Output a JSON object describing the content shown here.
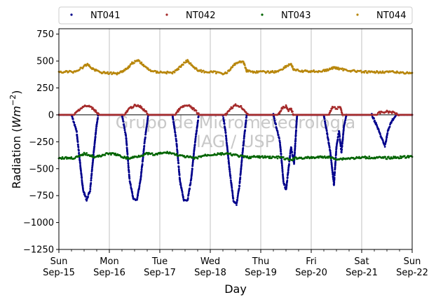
{
  "chart_data": {
    "type": "scatter",
    "xlabel": "Day",
    "ylabel_prefix": "Radiation (",
    "ylabel_unit_main": "Wm",
    "ylabel_unit_exp": "−2",
    "ylabel_suffix": ")",
    "ylim": [
      -1250,
      800
    ],
    "y_ticks": [
      -1250,
      -1000,
      -750,
      -500,
      -250,
      0,
      250,
      500,
      750
    ],
    "y_tick_labels": [
      "−1250",
      "−1000",
      "−750",
      "−500",
      "−250",
      "0",
      "250",
      "500",
      "750"
    ],
    "xlim": [
      0,
      7
    ],
    "x_ticks": [
      {
        "day": 0,
        "top": "Sun",
        "bottom": "Sep-15"
      },
      {
        "day": 1,
        "top": "Mon",
        "bottom": "Sep-16"
      },
      {
        "day": 2,
        "top": "Tue",
        "bottom": "Sep-17"
      },
      {
        "day": 3,
        "top": "Wed",
        "bottom": "Sep-18"
      },
      {
        "day": 4,
        "top": "Thu",
        "bottom": "Sep-19"
      },
      {
        "day": 5,
        "top": "Fri",
        "bottom": "Sep-20"
      },
      {
        "day": 6,
        "top": "Sat",
        "bottom": "Sep-21"
      },
      {
        "day": 7,
        "top": "Sun",
        "bottom": "Sep-22"
      }
    ],
    "grid": "vertical",
    "legend_position": "top",
    "watermark": [
      "Grupo de Micrometeorologia",
      "IAG / USP"
    ],
    "series": [
      {
        "name": "NT041",
        "color": "#00008b",
        "points": [
          [
            0,
            0
          ],
          [
            0.25,
            0
          ],
          [
            0.35,
            -150
          ],
          [
            0.42,
            -450
          ],
          [
            0.48,
            -700
          ],
          [
            0.55,
            -790
          ],
          [
            0.62,
            -700
          ],
          [
            0.68,
            -400
          ],
          [
            0.74,
            -120
          ],
          [
            0.78,
            0
          ],
          [
            1.25,
            0
          ],
          [
            1.33,
            -200
          ],
          [
            1.4,
            -600
          ],
          [
            1.48,
            -790
          ],
          [
            1.55,
            -780
          ],
          [
            1.62,
            -600
          ],
          [
            1.7,
            -250
          ],
          [
            1.77,
            0
          ],
          [
            2.25,
            0
          ],
          [
            2.33,
            -250
          ],
          [
            2.4,
            -620
          ],
          [
            2.48,
            -800
          ],
          [
            2.55,
            -790
          ],
          [
            2.62,
            -600
          ],
          [
            2.7,
            -250
          ],
          [
            2.77,
            0
          ],
          [
            3.25,
            0
          ],
          [
            3.3,
            -150
          ],
          [
            3.38,
            -500
          ],
          [
            3.46,
            -800
          ],
          [
            3.52,
            -830
          ],
          [
            3.58,
            -650
          ],
          [
            3.65,
            -300
          ],
          [
            3.72,
            0
          ],
          [
            4.25,
            0
          ],
          [
            4.38,
            -250
          ],
          [
            4.45,
            -620
          ],
          [
            4.5,
            -700
          ],
          [
            4.55,
            -500
          ],
          [
            4.6,
            -300
          ],
          [
            4.66,
            -450
          ],
          [
            4.72,
            0
          ],
          [
            5.25,
            0
          ],
          [
            5.38,
            -350
          ],
          [
            5.45,
            -650
          ],
          [
            5.5,
            -300
          ],
          [
            5.55,
            -150
          ],
          [
            5.6,
            -350
          ],
          [
            5.65,
            -100
          ],
          [
            5.7,
            0
          ],
          [
            6.2,
            0
          ],
          [
            6.3,
            -100
          ],
          [
            6.38,
            -200
          ],
          [
            6.46,
            -290
          ],
          [
            6.52,
            -150
          ],
          [
            6.6,
            -50
          ],
          [
            6.7,
            0
          ],
          [
            7,
            0
          ]
        ]
      },
      {
        "name": "NT042",
        "color": "#a52a2a",
        "points": [
          [
            0,
            0
          ],
          [
            0.3,
            0
          ],
          [
            0.4,
            50
          ],
          [
            0.5,
            80
          ],
          [
            0.6,
            80
          ],
          [
            0.7,
            50
          ],
          [
            0.8,
            0
          ],
          [
            1.3,
            0
          ],
          [
            1.4,
            60
          ],
          [
            1.5,
            85
          ],
          [
            1.6,
            80
          ],
          [
            1.7,
            40
          ],
          [
            1.78,
            0
          ],
          [
            2.3,
            0
          ],
          [
            2.4,
            60
          ],
          [
            2.5,
            85
          ],
          [
            2.6,
            80
          ],
          [
            2.7,
            40
          ],
          [
            2.78,
            0
          ],
          [
            3.3,
            0
          ],
          [
            3.4,
            60
          ],
          [
            3.5,
            90
          ],
          [
            3.6,
            80
          ],
          [
            3.7,
            30
          ],
          [
            3.75,
            0
          ],
          [
            4.35,
            0
          ],
          [
            4.42,
            60
          ],
          [
            4.5,
            80
          ],
          [
            4.55,
            40
          ],
          [
            4.6,
            60
          ],
          [
            4.65,
            0
          ],
          [
            5.35,
            0
          ],
          [
            5.42,
            70
          ],
          [
            5.5,
            60
          ],
          [
            5.58,
            70
          ],
          [
            5.62,
            0
          ],
          [
            6.3,
            0
          ],
          [
            6.35,
            20
          ],
          [
            6.5,
            30
          ],
          [
            6.65,
            20
          ],
          [
            6.75,
            0
          ],
          [
            7,
            0
          ]
        ]
      },
      {
        "name": "NT043",
        "color": "#006400",
        "points": [
          [
            0,
            -400
          ],
          [
            0.3,
            -400
          ],
          [
            0.42,
            -385
          ],
          [
            0.5,
            -360
          ],
          [
            0.6,
            -370
          ],
          [
            0.72,
            -395
          ],
          [
            0.88,
            -370
          ],
          [
            1.0,
            -360
          ],
          [
            1.12,
            -365
          ],
          [
            1.22,
            -385
          ],
          [
            1.38,
            -405
          ],
          [
            1.6,
            -380
          ],
          [
            1.75,
            -360
          ],
          [
            1.9,
            -370
          ],
          [
            2.05,
            -355
          ],
          [
            2.18,
            -350
          ],
          [
            2.3,
            -365
          ],
          [
            2.45,
            -385
          ],
          [
            2.6,
            -395
          ],
          [
            2.7,
            -405
          ],
          [
            2.85,
            -380
          ],
          [
            3.0,
            -370
          ],
          [
            3.15,
            -365
          ],
          [
            3.3,
            -360
          ],
          [
            3.45,
            -370
          ],
          [
            3.6,
            -385
          ],
          [
            3.75,
            -395
          ],
          [
            3.9,
            -390
          ],
          [
            4.1,
            -392
          ],
          [
            4.3,
            -395
          ],
          [
            4.4,
            -395
          ],
          [
            4.5,
            -410
          ],
          [
            4.6,
            -420
          ],
          [
            4.7,
            -400
          ],
          [
            4.9,
            -400
          ],
          [
            5.1,
            -395
          ],
          [
            5.3,
            -390
          ],
          [
            5.45,
            -405
          ],
          [
            5.55,
            -410
          ],
          [
            5.7,
            -405
          ],
          [
            5.9,
            -400
          ],
          [
            6.1,
            -395
          ],
          [
            6.3,
            -398
          ],
          [
            6.5,
            -400
          ],
          [
            6.7,
            -395
          ],
          [
            6.9,
            -390
          ],
          [
            7,
            -390
          ]
        ]
      },
      {
        "name": "NT044",
        "color": "#b8860b",
        "points": [
          [
            0,
            400
          ],
          [
            0.3,
            400
          ],
          [
            0.4,
            420
          ],
          [
            0.5,
            450
          ],
          [
            0.58,
            470
          ],
          [
            0.62,
            445
          ],
          [
            0.7,
            420
          ],
          [
            0.85,
            395
          ],
          [
            1.05,
            385
          ],
          [
            1.15,
            385
          ],
          [
            1.25,
            405
          ],
          [
            1.35,
            430
          ],
          [
            1.45,
            480
          ],
          [
            1.55,
            505
          ],
          [
            1.6,
            495
          ],
          [
            1.7,
            450
          ],
          [
            1.78,
            420
          ],
          [
            1.9,
            400
          ],
          [
            2.1,
            395
          ],
          [
            2.25,
            390
          ],
          [
            2.35,
            420
          ],
          [
            2.45,
            470
          ],
          [
            2.55,
            505
          ],
          [
            2.6,
            480
          ],
          [
            2.7,
            430
          ],
          [
            2.78,
            410
          ],
          [
            2.9,
            400
          ],
          [
            3.1,
            395
          ],
          [
            3.25,
            385
          ],
          [
            3.35,
            400
          ],
          [
            3.45,
            450
          ],
          [
            3.5,
            480
          ],
          [
            3.58,
            490
          ],
          [
            3.65,
            500
          ],
          [
            3.72,
            410
          ],
          [
            3.85,
            400
          ],
          [
            4.1,
            398
          ],
          [
            4.3,
            400
          ],
          [
            4.4,
            420
          ],
          [
            4.5,
            450
          ],
          [
            4.6,
            475
          ],
          [
            4.65,
            420
          ],
          [
            4.8,
            405
          ],
          [
            5.0,
            405
          ],
          [
            5.2,
            405
          ],
          [
            5.35,
            420
          ],
          [
            5.45,
            440
          ],
          [
            5.55,
            430
          ],
          [
            5.65,
            420
          ],
          [
            5.8,
            410
          ],
          [
            6.0,
            400
          ],
          [
            6.2,
            395
          ],
          [
            6.4,
            400
          ],
          [
            6.6,
            398
          ],
          [
            6.8,
            392
          ],
          [
            7,
            390
          ]
        ]
      }
    ]
  }
}
